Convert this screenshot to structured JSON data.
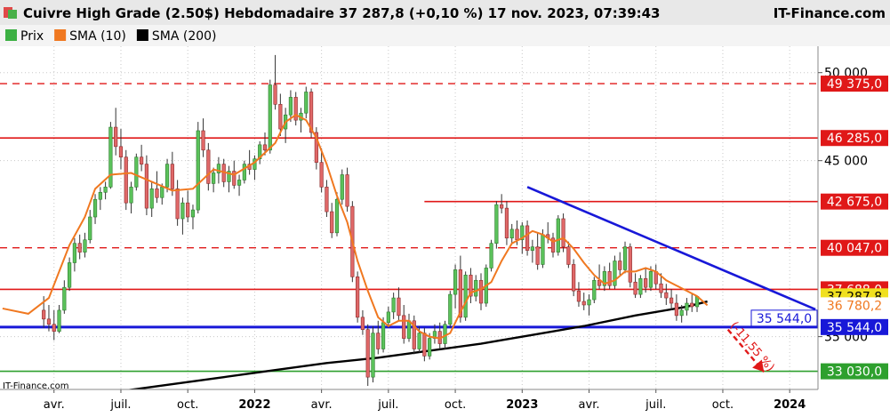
{
  "header": {
    "title": "Cuivre High Grade (2.50$) Hebdomadaire 37 287,8 (+0,10 %) 17 nov. 2023, 07:39:43",
    "brand": "IT-Finance.com"
  },
  "legend": [
    {
      "label": "Prix",
      "color": "#3cb043"
    },
    {
      "label": "SMA (10)",
      "color": "#f07820"
    },
    {
      "label": "SMA (200)",
      "color": "#000000"
    }
  ],
  "watermark": "IT-Finance.com",
  "colors": {
    "bull": "#5bc25b",
    "bear": "#e06868",
    "resistance": "#e01818",
    "support_blue": "#1818d8",
    "support_green": "#2ea02e",
    "sma10": "#f07820",
    "sma200": "#000000",
    "trendline": "#1818d8",
    "target_arrow": "#e01818"
  },
  "chart_data": {
    "type": "candlestick",
    "title": "Cuivre High Grade (2.50$) Hebdomadaire",
    "ylim": [
      32000,
      51500
    ],
    "y_ticks": [
      {
        "value": 50000,
        "label": "50 000"
      },
      {
        "value": 45000,
        "label": "45 000"
      },
      {
        "value": 35000,
        "label": "35 000"
      }
    ],
    "x_ticks": [
      {
        "week": 2,
        "label": "avr."
      },
      {
        "week": 15,
        "label": "juil."
      },
      {
        "week": 28,
        "label": "oct."
      },
      {
        "week": 41,
        "label": "2022",
        "bold": true
      },
      {
        "week": 54,
        "label": "avr."
      },
      {
        "week": 67,
        "label": "juil."
      },
      {
        "week": 80,
        "label": "oct."
      },
      {
        "week": 93,
        "label": "2023",
        "bold": true
      },
      {
        "week": 106,
        "label": "avr."
      },
      {
        "week": 119,
        "label": "juil."
      },
      {
        "week": 132,
        "label": "oct."
      },
      {
        "week": 145,
        "label": "2024",
        "bold": true
      }
    ],
    "x_range": [
      -8.5,
      150.5
    ],
    "candles": [
      [
        36500,
        37300,
        35500,
        36000
      ],
      [
        36000,
        36800,
        35300,
        35700
      ],
      [
        35700,
        36500,
        34800,
        35300
      ],
      [
        35300,
        36800,
        35200,
        36500
      ],
      [
        36500,
        38200,
        36300,
        37800
      ],
      [
        37800,
        39500,
        37600,
        39200
      ],
      [
        39200,
        40600,
        38700,
        40300
      ],
      [
        40300,
        40800,
        39400,
        39800
      ],
      [
        39800,
        40900,
        39500,
        40500
      ],
      [
        40500,
        42200,
        40300,
        41800
      ],
      [
        41800,
        43100,
        41400,
        42800
      ],
      [
        42800,
        43500,
        42200,
        43200
      ],
      [
        43200,
        43800,
        42800,
        43500
      ],
      [
        43500,
        47200,
        43400,
        46900
      ],
      [
        46900,
        48000,
        45300,
        45800
      ],
      [
        45800,
        46800,
        44500,
        45200
      ],
      [
        45200,
        45600,
        42200,
        42600
      ],
      [
        42600,
        43800,
        42000,
        43500
      ],
      [
        43500,
        45400,
        43300,
        45200
      ],
      [
        45200,
        45900,
        44400,
        44800
      ],
      [
        44800,
        45300,
        41900,
        42300
      ],
      [
        42300,
        43800,
        41800,
        43400
      ],
      [
        43400,
        44400,
        42600,
        42900
      ],
      [
        42900,
        43700,
        42500,
        43500
      ],
      [
        43500,
        45100,
        43200,
        44800
      ],
      [
        44800,
        45500,
        43000,
        43400
      ],
      [
        43400,
        43900,
        41300,
        41700
      ],
      [
        41700,
        42900,
        40800,
        42600
      ],
      [
        42600,
        43300,
        41500,
        41800
      ],
      [
        41800,
        42500,
        41100,
        42200
      ],
      [
        42200,
        47200,
        42000,
        46700
      ],
      [
        46700,
        47400,
        45200,
        45600
      ],
      [
        45600,
        46000,
        43300,
        43700
      ],
      [
        43700,
        44600,
        43200,
        44300
      ],
      [
        44300,
        45200,
        43700,
        44800
      ],
      [
        44800,
        45100,
        43500,
        43800
      ],
      [
        43800,
        44700,
        43200,
        44400
      ],
      [
        44400,
        45000,
        43400,
        43600
      ],
      [
        43600,
        44200,
        43000,
        43900
      ],
      [
        43900,
        45000,
        43700,
        44800
      ],
      [
        44800,
        45600,
        44200,
        44500
      ],
      [
        44500,
        45300,
        43900,
        45100
      ],
      [
        45100,
        46100,
        44800,
        45900
      ],
      [
        45900,
        46600,
        45300,
        45600
      ],
      [
        45600,
        49600,
        45400,
        49300
      ],
      [
        49300,
        51000,
        47900,
        48200
      ],
      [
        48200,
        48800,
        46400,
        46800
      ],
      [
        46800,
        48000,
        46000,
        47600
      ],
      [
        47600,
        49000,
        47200,
        48600
      ],
      [
        48600,
        48900,
        47000,
        47300
      ],
      [
        47300,
        48000,
        46600,
        47700
      ],
      [
        47700,
        49200,
        47400,
        48900
      ],
      [
        48900,
        49100,
        46300,
        46600
      ],
      [
        46600,
        46900,
        44500,
        44900
      ],
      [
        44900,
        45700,
        43200,
        43500
      ],
      [
        43500,
        43900,
        41800,
        42100
      ],
      [
        42100,
        42600,
        40600,
        40900
      ],
      [
        40900,
        43200,
        40700,
        42800
      ],
      [
        42800,
        44500,
        42500,
        44200
      ],
      [
        44200,
        44600,
        42100,
        42400
      ],
      [
        42400,
        42700,
        38100,
        38400
      ],
      [
        38400,
        38700,
        35800,
        36100
      ],
      [
        36100,
        36500,
        35100,
        35400
      ],
      [
        35400,
        35700,
        32200,
        32700
      ],
      [
        32700,
        35600,
        32400,
        35200
      ],
      [
        35200,
        35900,
        34000,
        34300
      ],
      [
        34300,
        36100,
        34100,
        35800
      ],
      [
        35800,
        36700,
        35500,
        36400
      ],
      [
        36400,
        37500,
        36000,
        37200
      ],
      [
        37200,
        37800,
        35900,
        36200
      ],
      [
        36200,
        36800,
        34600,
        34900
      ],
      [
        34900,
        36300,
        34700,
        35900
      ],
      [
        35900,
        36200,
        34000,
        34300
      ],
      [
        34300,
        35600,
        34100,
        35200
      ],
      [
        35200,
        35500,
        33600,
        33900
      ],
      [
        33900,
        35200,
        33700,
        34900
      ],
      [
        34900,
        35700,
        34600,
        35300
      ],
      [
        35300,
        35800,
        34300,
        34600
      ],
      [
        34600,
        35900,
        34300,
        35700
      ],
      [
        35700,
        37600,
        35500,
        37400
      ],
      [
        37400,
        39100,
        36600,
        38800
      ],
      [
        38800,
        39600,
        35800,
        36100
      ],
      [
        36100,
        38700,
        35900,
        38500
      ],
      [
        38500,
        38900,
        36900,
        37300
      ],
      [
        37300,
        38500,
        37000,
        38200
      ],
      [
        38200,
        38600,
        36500,
        36900
      ],
      [
        36900,
        39100,
        36700,
        38900
      ],
      [
        38900,
        40500,
        38700,
        40300
      ],
      [
        40300,
        42700,
        40000,
        42500
      ],
      [
        42500,
        43100,
        42000,
        42300
      ],
      [
        42300,
        42700,
        40200,
        40600
      ],
      [
        40600,
        41400,
        40300,
        41100
      ],
      [
        41100,
        41600,
        40200,
        40500
      ],
      [
        40500,
        41500,
        39700,
        41300
      ],
      [
        41300,
        41600,
        39600,
        39900
      ],
      [
        39900,
        40500,
        39200,
        40100
      ],
      [
        40100,
        40900,
        38800,
        39100
      ],
      [
        39100,
        41100,
        38900,
        40800
      ],
      [
        40800,
        41500,
        40300,
        40600
      ],
      [
        40600,
        40900,
        39500,
        39800
      ],
      [
        39800,
        41900,
        39600,
        41700
      ],
      [
        41700,
        42000,
        39800,
        40100
      ],
      [
        40100,
        40400,
        38900,
        39100
      ],
      [
        39100,
        39400,
        37300,
        37600
      ],
      [
        37600,
        38100,
        36700,
        37000
      ],
      [
        37000,
        37500,
        36500,
        36800
      ],
      [
        36800,
        37400,
        36200,
        37100
      ],
      [
        37100,
        38400,
        36900,
        38200
      ],
      [
        38200,
        39100,
        37700,
        37900
      ],
      [
        37900,
        39000,
        37600,
        38700
      ],
      [
        38700,
        39200,
        37700,
        37900
      ],
      [
        37900,
        39600,
        37700,
        39300
      ],
      [
        39300,
        39800,
        38500,
        38800
      ],
      [
        38800,
        40400,
        38600,
        40100
      ],
      [
        40100,
        40300,
        37800,
        38100
      ],
      [
        38100,
        38600,
        37200,
        37400
      ],
      [
        37400,
        38500,
        37200,
        38300
      ],
      [
        38300,
        38900,
        37500,
        37800
      ],
      [
        37800,
        39000,
        37600,
        38700
      ],
      [
        38700,
        39100,
        37700,
        38000
      ],
      [
        38000,
        38600,
        37200,
        37500
      ],
      [
        37500,
        38000,
        36800,
        37200
      ],
      [
        37200,
        37700,
        36500,
        36900
      ],
      [
        36900,
        37400,
        35900,
        36200
      ],
      [
        36200,
        36800,
        35800,
        36500
      ],
      [
        36500,
        37200,
        36200,
        36900
      ],
      [
        36900,
        37400,
        36400,
        36700
      ],
      [
        36700,
        37300,
        36400,
        37287.8
      ]
    ],
    "sma10": {
      "name": "SMA (10)",
      "points": [
        [
          -8,
          36600
        ],
        [
          -3,
          36300
        ],
        [
          1,
          37200
        ],
        [
          5,
          40200
        ],
        [
          8,
          41800
        ],
        [
          10,
          43400
        ],
        [
          13,
          44200
        ],
        [
          17,
          44300
        ],
        [
          21,
          43800
        ],
        [
          25,
          43300
        ],
        [
          29,
          43400
        ],
        [
          33,
          44500
        ],
        [
          37,
          44200
        ],
        [
          41,
          44900
        ],
        [
          45,
          46000
        ],
        [
          47,
          47200
        ],
        [
          49,
          47600
        ],
        [
          51,
          47300
        ],
        [
          53,
          46300
        ],
        [
          55,
          44800
        ],
        [
          57,
          43000
        ],
        [
          59,
          41500
        ],
        [
          61,
          39300
        ],
        [
          63,
          37600
        ],
        [
          65,
          36100
        ],
        [
          67,
          35600
        ],
        [
          69,
          35900
        ],
        [
          71,
          35900
        ],
        [
          73,
          35300
        ],
        [
          75,
          35000
        ],
        [
          77,
          34900
        ],
        [
          79,
          35200
        ],
        [
          81,
          36400
        ],
        [
          83,
          37500
        ],
        [
          85,
          37700
        ],
        [
          87,
          38100
        ],
        [
          89,
          39300
        ],
        [
          91,
          40300
        ],
        [
          93,
          40600
        ],
        [
          95,
          41000
        ],
        [
          97,
          40800
        ],
        [
          99,
          40400
        ],
        [
          101,
          40600
        ],
        [
          103,
          40000
        ],
        [
          105,
          39200
        ],
        [
          107,
          38500
        ],
        [
          109,
          38000
        ],
        [
          111,
          38200
        ],
        [
          113,
          38700
        ],
        [
          115,
          38700
        ],
        [
          117,
          38900
        ],
        [
          119,
          38700
        ],
        [
          121,
          38200
        ],
        [
          123,
          37900
        ],
        [
          125,
          37600
        ],
        [
          127,
          37300
        ],
        [
          129,
          36780.2
        ]
      ]
    },
    "sma200": {
      "name": "SMA (200)",
      "points": [
        [
          15,
          31900
        ],
        [
          25,
          32300
        ],
        [
          35,
          32700
        ],
        [
          45,
          33100
        ],
        [
          55,
          33500
        ],
        [
          65,
          33800
        ],
        [
          75,
          34200
        ],
        [
          85,
          34600
        ],
        [
          95,
          35100
        ],
        [
          105,
          35600
        ],
        [
          115,
          36200
        ],
        [
          125,
          36700
        ],
        [
          129,
          37000
        ]
      ]
    },
    "levels": [
      {
        "value": 49375.0,
        "label": "49 375,0",
        "style": "dashed",
        "color": "#e01818",
        "x_start": -8.5
      },
      {
        "value": 46285.0,
        "label": "46 285,0",
        "style": "solid",
        "color": "#e01818",
        "x_start": -8.5
      },
      {
        "value": 42675.0,
        "label": "42 675,0",
        "style": "solid",
        "color": "#e01818",
        "x_start": 74
      },
      {
        "value": 40047.0,
        "label": "40 047,0",
        "style": "dashed",
        "color": "#e01818",
        "x_start": -8.5
      },
      {
        "value": 37688.0,
        "label": "37 688,0",
        "style": "solid",
        "color": "#e01818",
        "x_start": -8.5
      },
      {
        "value": 35544.0,
        "label": "35 544,0",
        "style": "solid_thick",
        "color": "#1818d8",
        "x_start": -8.5
      },
      {
        "value": 33030.0,
        "label": "33 030,0",
        "style": "solid",
        "color": "#2ea02e",
        "x_start": -8.5
      }
    ],
    "price_tags": [
      {
        "value": 37287.8,
        "label": "37 287,8",
        "bg": "#f0e020",
        "color": "#000000"
      },
      {
        "value": 36780.2,
        "label": "36 780,2",
        "bg": "#ffffff",
        "color": "#f07820"
      }
    ],
    "trendline": {
      "from": [
        94,
        43500
      ],
      "to": [
        150,
        36550
      ]
    },
    "support_tag": {
      "value": 35544.0,
      "label": "35 544,0"
    },
    "target_arrow": {
      "label": "(-11,55 %)",
      "from": [
        133,
        35400
      ],
      "to": [
        140,
        33000
      ]
    }
  }
}
